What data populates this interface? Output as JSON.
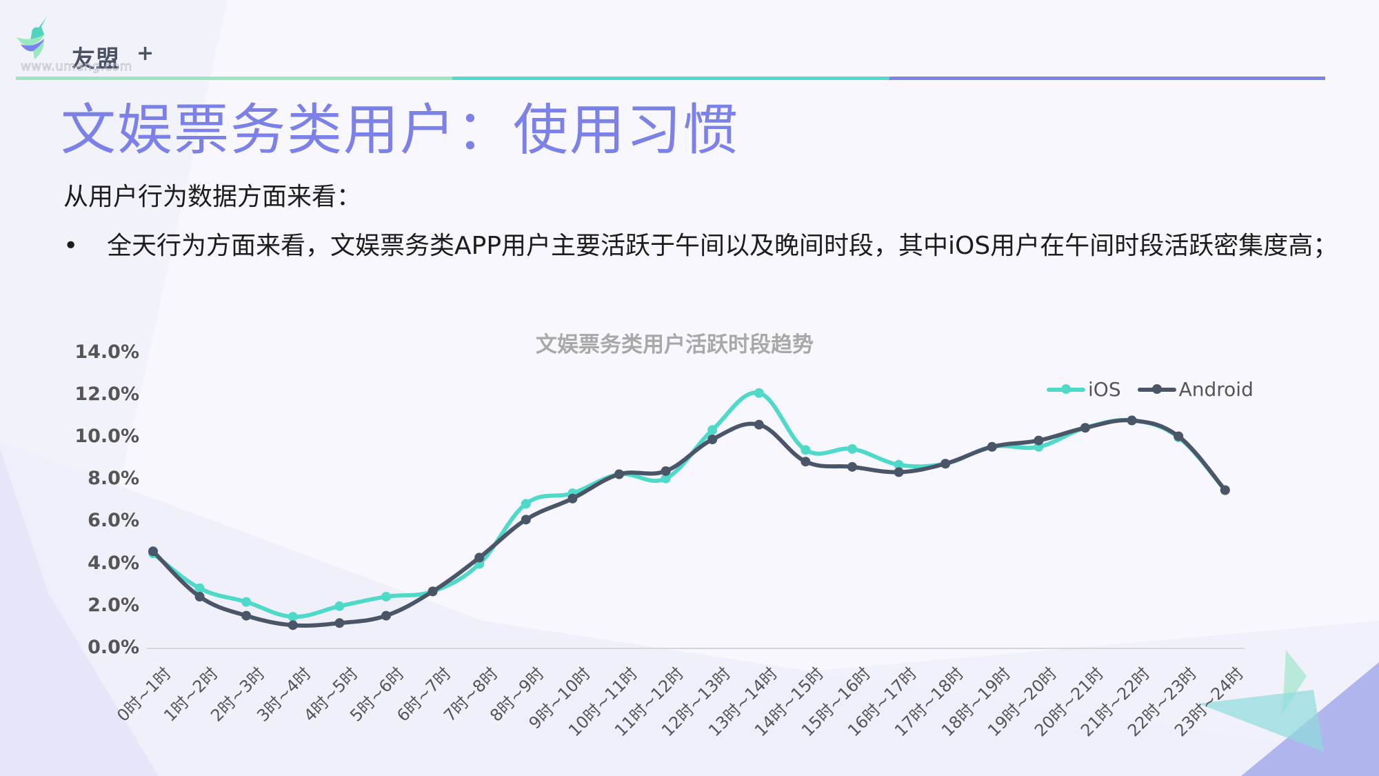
{
  "logo": {
    "name": "友盟",
    "plus": "+",
    "url": "www.umeng.com"
  },
  "header_line_colors": [
    "#9ae8c0",
    "#53d8cc",
    "#7b83e8"
  ],
  "page": {
    "title": "文娱票务类用户：使用习惯",
    "intro": "从用户行为数据方面来看：",
    "bullet_symbol": "•",
    "bullet_text": "全天行为方面来看，文娱票务类APP用户主要活跃于午间以及晚间时段，其中iOS用户在午间时段活跃密集度高；"
  },
  "colors": {
    "title": "#7b81e7",
    "ios": "#4fd9c9",
    "android": "#4a5568",
    "axis": "#d6d6d6"
  },
  "chart_data": {
    "type": "line",
    "title": "文娱票务类用户活跃时段趋势",
    "xlabel": "",
    "ylabel": "",
    "ylim": [
      0,
      14
    ],
    "yticks": [
      "0.0%",
      "2.0%",
      "4.0%",
      "6.0%",
      "8.0%",
      "10.0%",
      "12.0%",
      "14.0%"
    ],
    "grid": false,
    "legend_position": "top-right",
    "smooth": true,
    "categories": [
      "0时~1时",
      "1时~2时",
      "2时~3时",
      "3时~4时",
      "4时~5时",
      "5时~6时",
      "6时~7时",
      "7时~8时",
      "8时~9时",
      "9时~10时",
      "10时~11时",
      "11时~12时",
      "12时~13时",
      "13时~14时",
      "14时~15时",
      "15时~16时",
      "16时~17时",
      "17时~18时",
      "18时~19时",
      "19时~20时",
      "20时~21时",
      "21时~22时",
      "22时~23时",
      "23时~24时"
    ],
    "series": [
      {
        "name": "iOS",
        "color": "#4fd9c9",
        "values": [
          4.5,
          2.85,
          2.2,
          1.5,
          2.0,
          2.45,
          2.7,
          4.0,
          6.85,
          7.35,
          8.25,
          8.05,
          10.35,
          12.1,
          9.4,
          9.45,
          8.7,
          8.75,
          9.55,
          9.55,
          10.45,
          10.8,
          10.0,
          7.5
        ]
      },
      {
        "name": "Android",
        "color": "#4a5568",
        "values": [
          4.6,
          2.45,
          1.55,
          1.1,
          1.2,
          1.55,
          2.7,
          4.3,
          6.1,
          7.1,
          8.25,
          8.4,
          9.9,
          10.6,
          8.85,
          8.6,
          8.35,
          8.75,
          9.55,
          9.85,
          10.45,
          10.8,
          10.05,
          7.5
        ]
      }
    ]
  }
}
